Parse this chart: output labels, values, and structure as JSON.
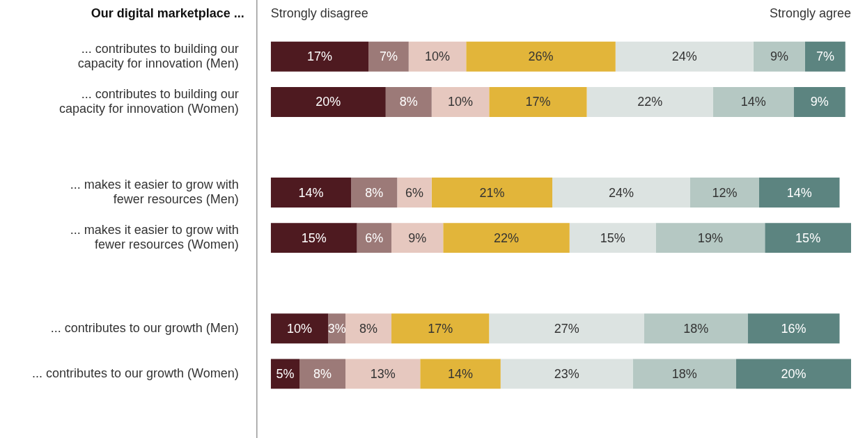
{
  "chart_data": {
    "type": "bar",
    "orientation": "horizontal",
    "stacked": true,
    "title": "Our digital marketplace ...",
    "categories": [
      "... contributes to building our capacity for innovation (Men)",
      "... contributes to building our capacity for innovation (Women)",
      null,
      "... makes it easier to grow with fewer resources (Men)",
      "... makes it easier to grow with fewer resources (Women)",
      null,
      "... contributes to our growth (Men)",
      "... contributes to our growth (Women)"
    ],
    "series": [
      {
        "color": "#4e1a20",
        "values": [
          17,
          20,
          null,
          14,
          15,
          null,
          10,
          5
        ],
        "value_labels": [
          "17%",
          "20%",
          null,
          "14%",
          "15%",
          null,
          "10%",
          "5%"
        ]
      },
      {
        "color": "#9c7a78",
        "values": [
          7,
          8,
          null,
          8,
          6,
          null,
          3,
          8
        ],
        "value_labels": [
          "7%",
          "8%",
          null,
          "8%",
          "6%",
          null,
          "3%",
          "8%"
        ]
      },
      {
        "color": "#e6c8bf",
        "values": [
          10,
          10,
          null,
          6,
          9,
          null,
          8,
          13
        ],
        "value_labels": [
          "10%",
          "10%",
          null,
          "6%",
          "9%",
          null,
          "8%",
          "13%"
        ]
      },
      {
        "color": "#e2b53a",
        "values": [
          26,
          17,
          null,
          21,
          22,
          null,
          17,
          14
        ],
        "value_labels": [
          "26%",
          "17%",
          null,
          "21%",
          "22%",
          null,
          "17%",
          "14%"
        ]
      },
      {
        "color": "#dce3e1",
        "values": [
          24,
          22,
          null,
          24,
          15,
          null,
          27,
          23
        ],
        "value_labels": [
          "24%",
          "22%",
          null,
          "24%",
          "15%",
          null,
          "27%",
          "23%"
        ]
      },
      {
        "color": "#b5c8c3",
        "values": [
          9,
          14,
          null,
          12,
          19,
          null,
          18,
          18
        ],
        "value_labels": [
          "9%",
          "14%",
          null,
          "12%",
          "19%",
          null,
          "18%",
          "18%"
        ]
      },
      {
        "color": "#5c8480",
        "values": [
          7,
          9,
          null,
          14,
          15,
          null,
          16,
          20
        ],
        "value_labels": [
          "7%",
          "9%",
          null,
          "14%",
          "15%",
          null,
          "16%",
          "20%"
        ]
      }
    ],
    "tick_labels": "y",
    "annotations": [
      "Strongly disagree",
      "Strongly agree"
    ]
  }
}
